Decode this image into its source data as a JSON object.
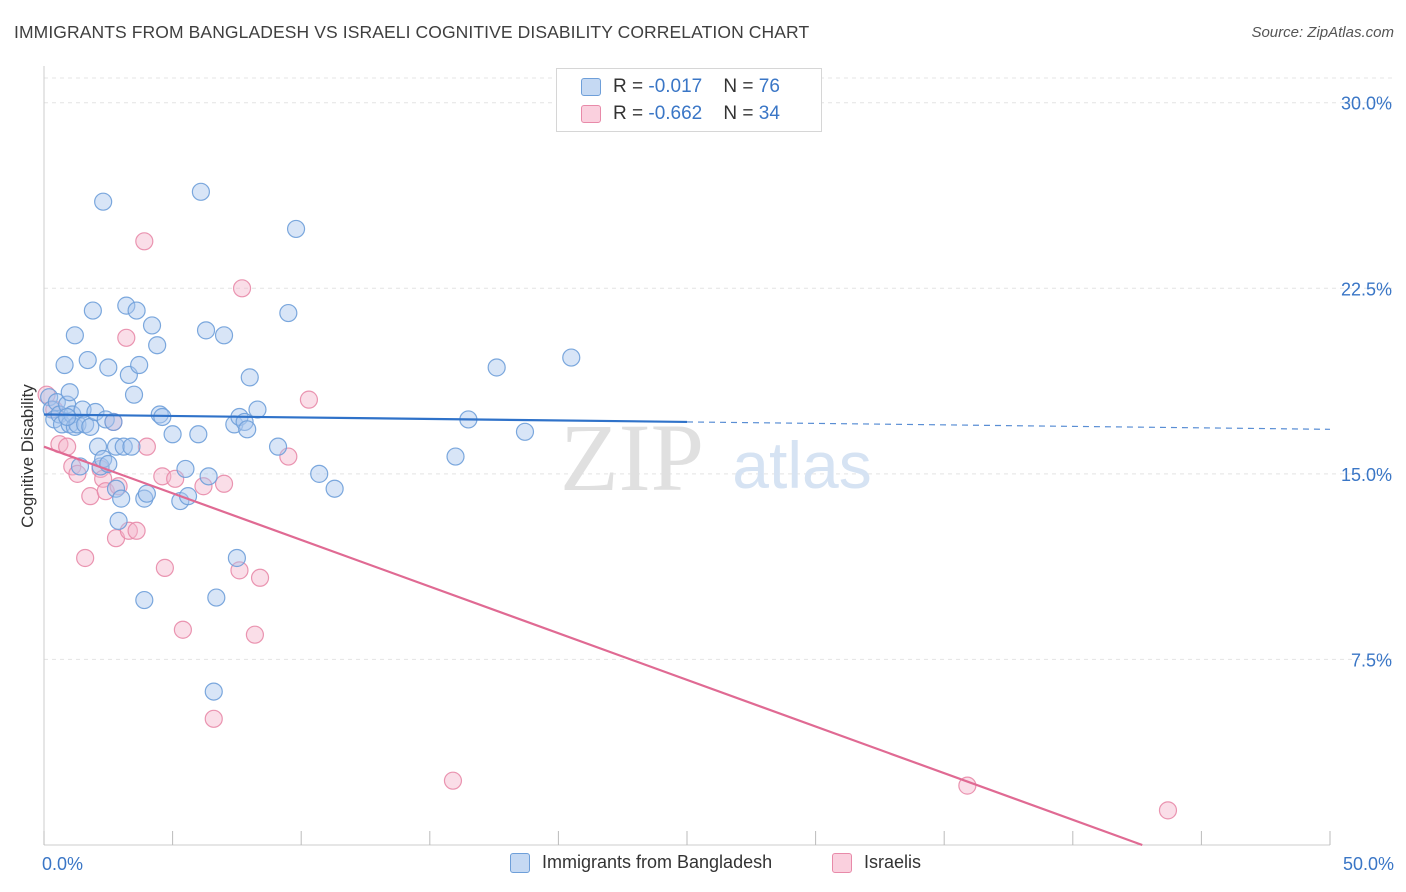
{
  "page": {
    "title": "IMMIGRANTS FROM BANGLADESH VS ISRAELI COGNITIVE DISABILITY CORRELATION CHART",
    "source": "Source: ZipAtlas.com"
  },
  "colors": {
    "blue_fill": "#a9c6ee",
    "blue_stroke": "#6e9fd9",
    "blue_line": "#2f72c9",
    "pink_fill": "#f5b6cb",
    "pink_stroke": "#e88aa9",
    "pink_line": "#e06a93",
    "axis_text": "#3a76c6",
    "grid": "#e4e4e4"
  },
  "legend": {
    "rows": [
      {
        "r_label": "R = ",
        "r_value": "-0.017",
        "n_label": "N = ",
        "n_value": "76"
      },
      {
        "r_label": "R = ",
        "r_value": "-0.662",
        "n_label": "N = ",
        "n_value": "34"
      }
    ],
    "bottom": [
      "Immigrants from Bangladesh",
      "Israelis"
    ]
  },
  "watermark": {
    "zip": "ZIP",
    "atlas": "atlas"
  },
  "chart_data": {
    "type": "scatter",
    "title": "IMMIGRANTS FROM BANGLADESH VS ISRAELI COGNITIVE DISABILITY CORRELATION CHART",
    "xlabel": "",
    "ylabel": "Cognitive Disability",
    "xlim": [
      0,
      50
    ],
    "ylim": [
      0,
      31
    ],
    "x_tick_labels": [
      "0.0%",
      "50.0%"
    ],
    "y_ticks": [
      7.5,
      15.0,
      22.5,
      30.0
    ],
    "y_tick_labels": [
      "7.5%",
      "15.0%",
      "22.5%",
      "30.0%"
    ],
    "grid": true,
    "series": [
      {
        "name": "Immigrants from Bangladesh",
        "trend": {
          "x": [
            0,
            25
          ],
          "y": [
            17.4,
            17.1
          ],
          "dashed_to": [
            50,
            16.8
          ]
        },
        "points": [
          [
            0.2,
            18.1
          ],
          [
            0.3,
            17.6
          ],
          [
            0.4,
            17.2
          ],
          [
            0.5,
            17.9
          ],
          [
            0.6,
            17.4
          ],
          [
            0.7,
            17.0
          ],
          [
            0.8,
            19.4
          ],
          [
            0.9,
            17.8
          ],
          [
            1.0,
            18.3
          ],
          [
            1.0,
            17.0
          ],
          [
            1.1,
            17.4
          ],
          [
            1.2,
            20.6
          ],
          [
            1.2,
            16.9
          ],
          [
            1.3,
            17.0
          ],
          [
            1.4,
            15.3
          ],
          [
            1.5,
            17.6
          ],
          [
            1.6,
            17.0
          ],
          [
            1.7,
            19.6
          ],
          [
            1.8,
            16.9
          ],
          [
            1.9,
            21.6
          ],
          [
            2.0,
            17.5
          ],
          [
            2.1,
            16.1
          ],
          [
            2.2,
            15.3
          ],
          [
            2.3,
            26.0
          ],
          [
            2.3,
            15.6
          ],
          [
            2.4,
            17.2
          ],
          [
            2.5,
            15.4
          ],
          [
            2.5,
            19.3
          ],
          [
            2.7,
            17.1
          ],
          [
            2.8,
            16.1
          ],
          [
            2.8,
            14.4
          ],
          [
            2.9,
            13.1
          ],
          [
            3.0,
            14.0
          ],
          [
            3.1,
            16.1
          ],
          [
            3.2,
            21.8
          ],
          [
            3.3,
            19.0
          ],
          [
            3.4,
            16.1
          ],
          [
            3.5,
            18.2
          ],
          [
            3.6,
            21.6
          ],
          [
            3.7,
            19.4
          ],
          [
            3.9,
            14.0
          ],
          [
            3.9,
            9.9
          ],
          [
            4.0,
            14.2
          ],
          [
            4.2,
            21.0
          ],
          [
            4.4,
            20.2
          ],
          [
            4.5,
            17.4
          ],
          [
            4.6,
            17.3
          ],
          [
            5.0,
            16.6
          ],
          [
            5.3,
            13.9
          ],
          [
            5.5,
            15.2
          ],
          [
            5.6,
            14.1
          ],
          [
            6.0,
            16.6
          ],
          [
            6.1,
            26.4
          ],
          [
            6.3,
            20.8
          ],
          [
            6.4,
            14.9
          ],
          [
            6.6,
            6.2
          ],
          [
            6.7,
            10.0
          ],
          [
            7.0,
            20.6
          ],
          [
            7.4,
            17.0
          ],
          [
            7.5,
            11.6
          ],
          [
            7.6,
            17.3
          ],
          [
            7.8,
            17.1
          ],
          [
            7.9,
            16.8
          ],
          [
            8.0,
            18.9
          ],
          [
            8.3,
            17.6
          ],
          [
            9.1,
            16.1
          ],
          [
            9.5,
            21.5
          ],
          [
            9.8,
            24.9
          ],
          [
            10.7,
            15.0
          ],
          [
            11.3,
            14.4
          ],
          [
            16.0,
            15.7
          ],
          [
            16.5,
            17.2
          ],
          [
            17.6,
            19.3
          ],
          [
            18.7,
            16.7
          ],
          [
            20.5,
            19.7
          ],
          [
            0.9,
            17.3
          ]
        ]
      },
      {
        "name": "Israelis",
        "trend": {
          "x": [
            0,
            42.7
          ],
          "y": [
            16.1,
            0
          ]
        },
        "points": [
          [
            0.1,
            18.2
          ],
          [
            0.4,
            17.6
          ],
          [
            0.6,
            16.2
          ],
          [
            0.9,
            16.1
          ],
          [
            1.1,
            15.3
          ],
          [
            1.3,
            15.0
          ],
          [
            1.6,
            11.6
          ],
          [
            1.8,
            14.1
          ],
          [
            2.2,
            15.2
          ],
          [
            2.3,
            14.8
          ],
          [
            2.4,
            14.3
          ],
          [
            2.7,
            17.1
          ],
          [
            2.8,
            12.4
          ],
          [
            2.9,
            14.5
          ],
          [
            3.2,
            20.5
          ],
          [
            3.3,
            12.7
          ],
          [
            3.6,
            12.7
          ],
          [
            3.9,
            24.4
          ],
          [
            4.0,
            16.1
          ],
          [
            4.6,
            14.9
          ],
          [
            4.7,
            11.2
          ],
          [
            5.1,
            14.8
          ],
          [
            5.4,
            8.7
          ],
          [
            6.2,
            14.5
          ],
          [
            6.6,
            5.1
          ],
          [
            7.0,
            14.6
          ],
          [
            7.6,
            11.1
          ],
          [
            7.7,
            22.5
          ],
          [
            8.2,
            8.5
          ],
          [
            8.4,
            10.8
          ],
          [
            9.5,
            15.7
          ],
          [
            10.3,
            18.0
          ],
          [
            15.9,
            2.6
          ],
          [
            35.9,
            2.4
          ]
        ],
        "extra_point": [
          43.7,
          1.4
        ]
      }
    ]
  }
}
